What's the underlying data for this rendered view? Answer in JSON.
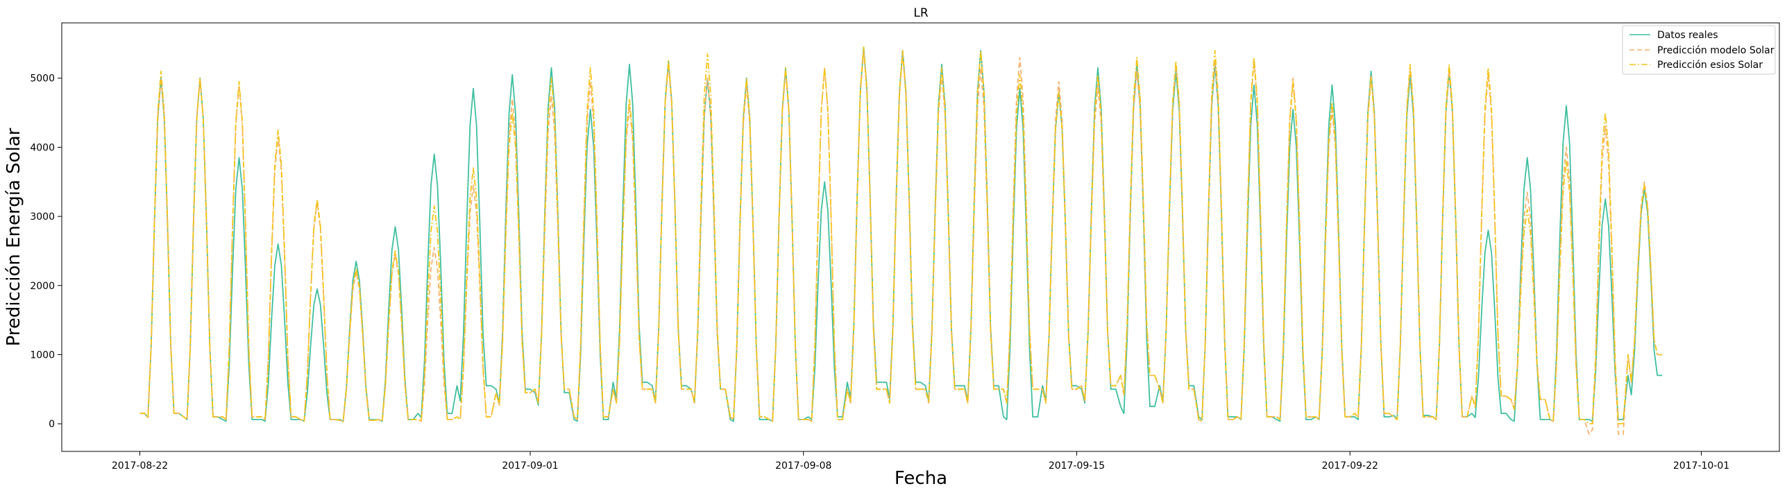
{
  "chart_data": {
    "type": "line",
    "title": "LR",
    "xlabel": "Fecha",
    "ylabel": "Predicción Energía Solar",
    "xlim": [
      "2017-08-20",
      "2017-10-03"
    ],
    "ylim": [
      -400,
      5800
    ],
    "x_ticks": [
      "2017-08-22",
      "2017-09-01",
      "2017-09-08",
      "2017-09-15",
      "2017-09-22",
      "2017-10-01"
    ],
    "y_ticks": [
      0,
      1000,
      2000,
      3000,
      4000,
      5000
    ],
    "grid": false,
    "legend_position": "top-right",
    "x_start": "2017-08-22",
    "x_end": "2017-09-30",
    "sample_note": "one value per day = daily peak",
    "series": [
      {
        "name": "Datos reales",
        "color": "#3fbf9f",
        "style": "solid",
        "daily_peaks": [
          5000,
          5000,
          3850,
          2600,
          1950,
          2350,
          2850,
          3900,
          4850,
          5050,
          5150,
          4550,
          5200,
          5250,
          5000,
          5000,
          5150,
          3500,
          5450,
          5400,
          5200,
          5400,
          4850,
          4800,
          5150,
          5200,
          5100,
          5200,
          4900,
          4550,
          4900,
          5100,
          5050,
          5100,
          2800,
          3850,
          4600,
          3250,
          3400
        ],
        "night_floor": [
          150,
          100,
          60,
          60,
          60,
          60,
          60,
          150,
          550,
          500,
          450,
          60,
          600,
          550,
          500,
          60,
          60,
          100,
          600,
          600,
          550,
          550,
          100,
          550,
          500,
          250,
          550,
          100,
          100,
          60,
          100,
          100,
          120,
          100,
          150,
          60,
          60,
          60,
          700
        ]
      },
      {
        "name": "Predicción modelo Solar",
        "color": "#f7b26b",
        "style": "dashed",
        "daily_peaks": [
          5000,
          5000,
          4900,
          4150,
          3200,
          2200,
          2450,
          2550,
          3450,
          4700,
          4750,
          4950,
          4600,
          5200,
          5000,
          4900,
          5100,
          5150,
          5400,
          5350,
          5050,
          5150,
          5300,
          4950,
          4900,
          5100,
          5200,
          5250,
          5250,
          5000,
          4550,
          5050,
          5150,
          5100,
          5050,
          3350,
          4000,
          4300,
          3500
        ],
        "night_floor": [
          150,
          100,
          100,
          100,
          60,
          50,
          60,
          60,
          100,
          450,
          500,
          100,
          500,
          500,
          500,
          100,
          60,
          60,
          500,
          500,
          500,
          500,
          500,
          500,
          550,
          700,
          500,
          60,
          100,
          100,
          100,
          150,
          100,
          100,
          400,
          350,
          60,
          -150,
          1000
        ]
      },
      {
        "name": "Predicción esios Solar",
        "color": "#f5c518",
        "style": "dashdot",
        "daily_peaks": [
          5100,
          5000,
          4950,
          4250,
          3250,
          2250,
          2500,
          3150,
          3700,
          4500,
          5000,
          5150,
          4700,
          5250,
          5350,
          5000,
          5150,
          5150,
          5450,
          5400,
          5150,
          5400,
          5050,
          4800,
          5050,
          5300,
          5250,
          5400,
          5300,
          4950,
          4650,
          5000,
          5200,
          5200,
          5150,
          3100,
          3800,
          4500,
          3450
        ],
        "night_floor": [
          150,
          100,
          100,
          100,
          60,
          50,
          60,
          60,
          100,
          450,
          500,
          100,
          500,
          500,
          500,
          100,
          60,
          60,
          500,
          500,
          500,
          500,
          500,
          500,
          550,
          700,
          500,
          60,
          100,
          100,
          100,
          150,
          100,
          100,
          400,
          350,
          60,
          0,
          1000
        ]
      }
    ]
  }
}
